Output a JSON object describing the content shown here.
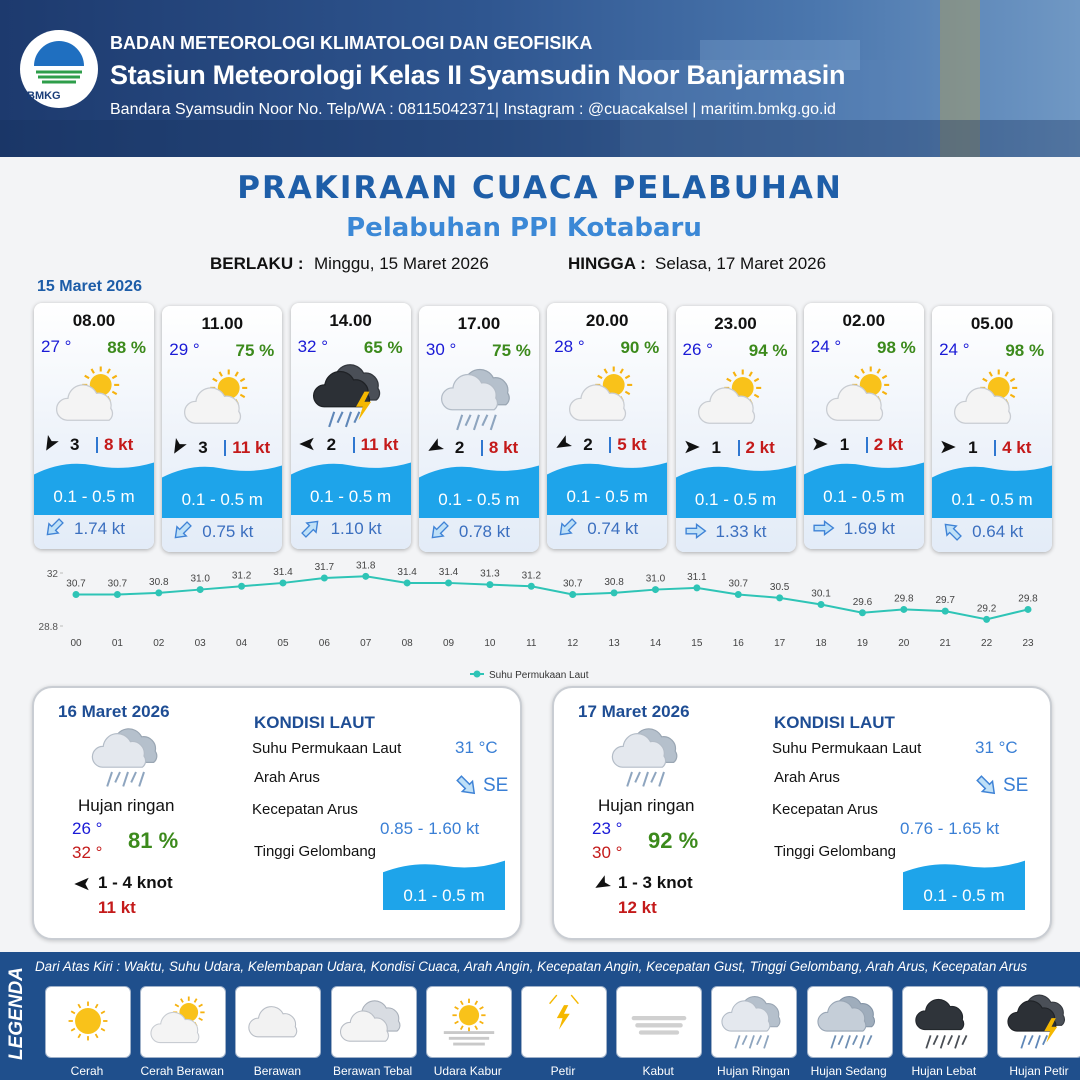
{
  "header": {
    "logo_text": "BMKG",
    "organization": "BADAN METEOROLOGI KLIMATOLOGI DAN GEOFISIKA",
    "station": "Stasiun Meteorologi Kelas II Syamsudin Noor Banjarmasin",
    "contact": "Bandara Syamsudin Noor No. Telp/WA : 08115042371| Instagram : @cuacakalsel | maritim.bmkg.go.id"
  },
  "title": "PRAKIRAAN CUACA PELABUHAN",
  "subtitle": "Pelabuhan PPI Kotabaru",
  "validity": {
    "from_label": "BERLAKU :",
    "from": "Minggu, 15 Maret 2026",
    "to_label": "HINGGA :",
    "to": "Selasa, 17 Maret 2026"
  },
  "day1": {
    "date": "15 Maret 2026",
    "forecasts": [
      {
        "time": "08.00",
        "temperature": "27 °",
        "humidity": "88 %",
        "wind_speed": "3",
        "gust": "8 kt",
        "wave": "0.1 - 0.5 m",
        "current": "1.74 kt"
      },
      {
        "time": "11.00",
        "temperature": "29 °",
        "humidity": "75 %",
        "wind_speed": "3",
        "gust": "11 kt",
        "wave": "0.1 - 0.5 m",
        "current": "0.75 kt"
      },
      {
        "time": "14.00",
        "temperature": "32 °",
        "humidity": "65 %",
        "wind_speed": "2",
        "gust": "11 kt",
        "wave": "0.1 - 0.5 m",
        "current": "1.10 kt"
      },
      {
        "time": "17.00",
        "temperature": "30 °",
        "humidity": "75 %",
        "wind_speed": "2",
        "gust": "8 kt",
        "wave": "0.1 - 0.5 m",
        "current": "0.78 kt"
      },
      {
        "time": "20.00",
        "temperature": "28 °",
        "humidity": "90 %",
        "wind_speed": "2",
        "gust": "5 kt",
        "wave": "0.1 - 0.5 m",
        "current": "0.74 kt"
      },
      {
        "time": "23.00",
        "temperature": "26 °",
        "humidity": "94 %",
        "wind_speed": "1",
        "gust": "2 kt",
        "wave": "0.1 - 0.5 m",
        "current": "1.33 kt"
      },
      {
        "time": "02.00",
        "temperature": "24 °",
        "humidity": "98 %",
        "wind_speed": "1",
        "gust": "2 kt",
        "wave": "0.1 - 0.5 m",
        "current": "1.69 kt"
      },
      {
        "time": "05.00",
        "temperature": "24 °",
        "humidity": "98 %",
        "wind_speed": "1",
        "gust": "4 kt",
        "wave": "0.1 - 0.5 m",
        "current": "0.64 kt"
      }
    ]
  },
  "chart_data": {
    "type": "line",
    "categories": [
      "00",
      "01",
      "02",
      "03",
      "04",
      "05",
      "06",
      "07",
      "08",
      "09",
      "10",
      "11",
      "12",
      "13",
      "14",
      "15",
      "16",
      "17",
      "18",
      "19",
      "20",
      "21",
      "22",
      "23"
    ],
    "series": [
      {
        "name": "Suhu Permukaan Laut",
        "color": "#2ec4b6",
        "values": [
          30.7,
          30.7,
          30.8,
          31.0,
          31.2,
          31.4,
          31.7,
          31.8,
          31.4,
          31.4,
          31.3,
          31.2,
          30.7,
          30.8,
          31.0,
          31.1,
          30.7,
          30.5,
          30.1,
          29.6,
          29.8,
          29.7,
          29.2,
          29.8
        ],
        "value_labels": [
          "30.7",
          "30.7",
          "30.8",
          "31.0",
          "31.2",
          "31.4",
          "31.7",
          "31.8",
          "31.4",
          "31.4",
          "31.3",
          "31.2",
          "30.7",
          "30.8",
          "31.0",
          "31.1",
          "30.7",
          "30.5",
          "30.1",
          "29.6",
          "29.8",
          "29.7",
          "29.2",
          "29.8"
        ]
      }
    ],
    "ylim": [
      28.8,
      32
    ],
    "yticks": [
      28.8,
      32
    ],
    "grid": false,
    "legend": "bottom"
  },
  "days": [
    {
      "date": "16 Maret 2026",
      "condition": "Hujan ringan",
      "temp_min": "26 °",
      "temp_max": "32 °",
      "humidity": "81 %",
      "wind": "1  - 4 knot",
      "gust": "11 kt",
      "sea_title": "KONDISI LAUT",
      "sst_label": "Suhu Permukaan Laut",
      "sst": "31 °C",
      "current_dir_label": "Arah Arus",
      "current_dir": "SE",
      "current_speed_label": "Kecepatan Arus",
      "current_speed": "0.85 - 1.60 kt",
      "wave_label": "Tinggi Gelombang",
      "wave": "0.1 - 0.5 m"
    },
    {
      "date": "17 Maret 2026",
      "condition": "Hujan ringan",
      "temp_min": "23 °",
      "temp_max": "30 °",
      "humidity": "92 %",
      "wind": "1  - 3 knot",
      "gust": "12 kt",
      "sea_title": "KONDISI LAUT",
      "sst_label": "Suhu Permukaan Laut",
      "sst": "31 °C",
      "current_dir_label": "Arah Arus",
      "current_dir": "SE",
      "current_speed_label": "Kecepatan Arus",
      "current_speed": "0.76 - 1.65 kt",
      "wave_label": "Tinggi Gelombang",
      "wave": "0.1 - 0.5 m"
    }
  ],
  "legend": {
    "title": "LEGENDA",
    "description": "Dari Atas Kiri : Waktu, Suhu Udara, Kelembapan Udara, Kondisi Cuaca, Arah Angin, Kecepatan Angin, Kecepatan Gust, Tinggi Gelombang, Arah Arus, Kecepatan Arus",
    "items": [
      "Cerah",
      "Cerah Berawan",
      "Berawan",
      "Berawan Tebal",
      "Udara Kabur",
      "Petir",
      "Kabut",
      "Hujan Ringan",
      "Hujan Sedang",
      "Hujan Lebat",
      "Hujan Petir"
    ]
  }
}
